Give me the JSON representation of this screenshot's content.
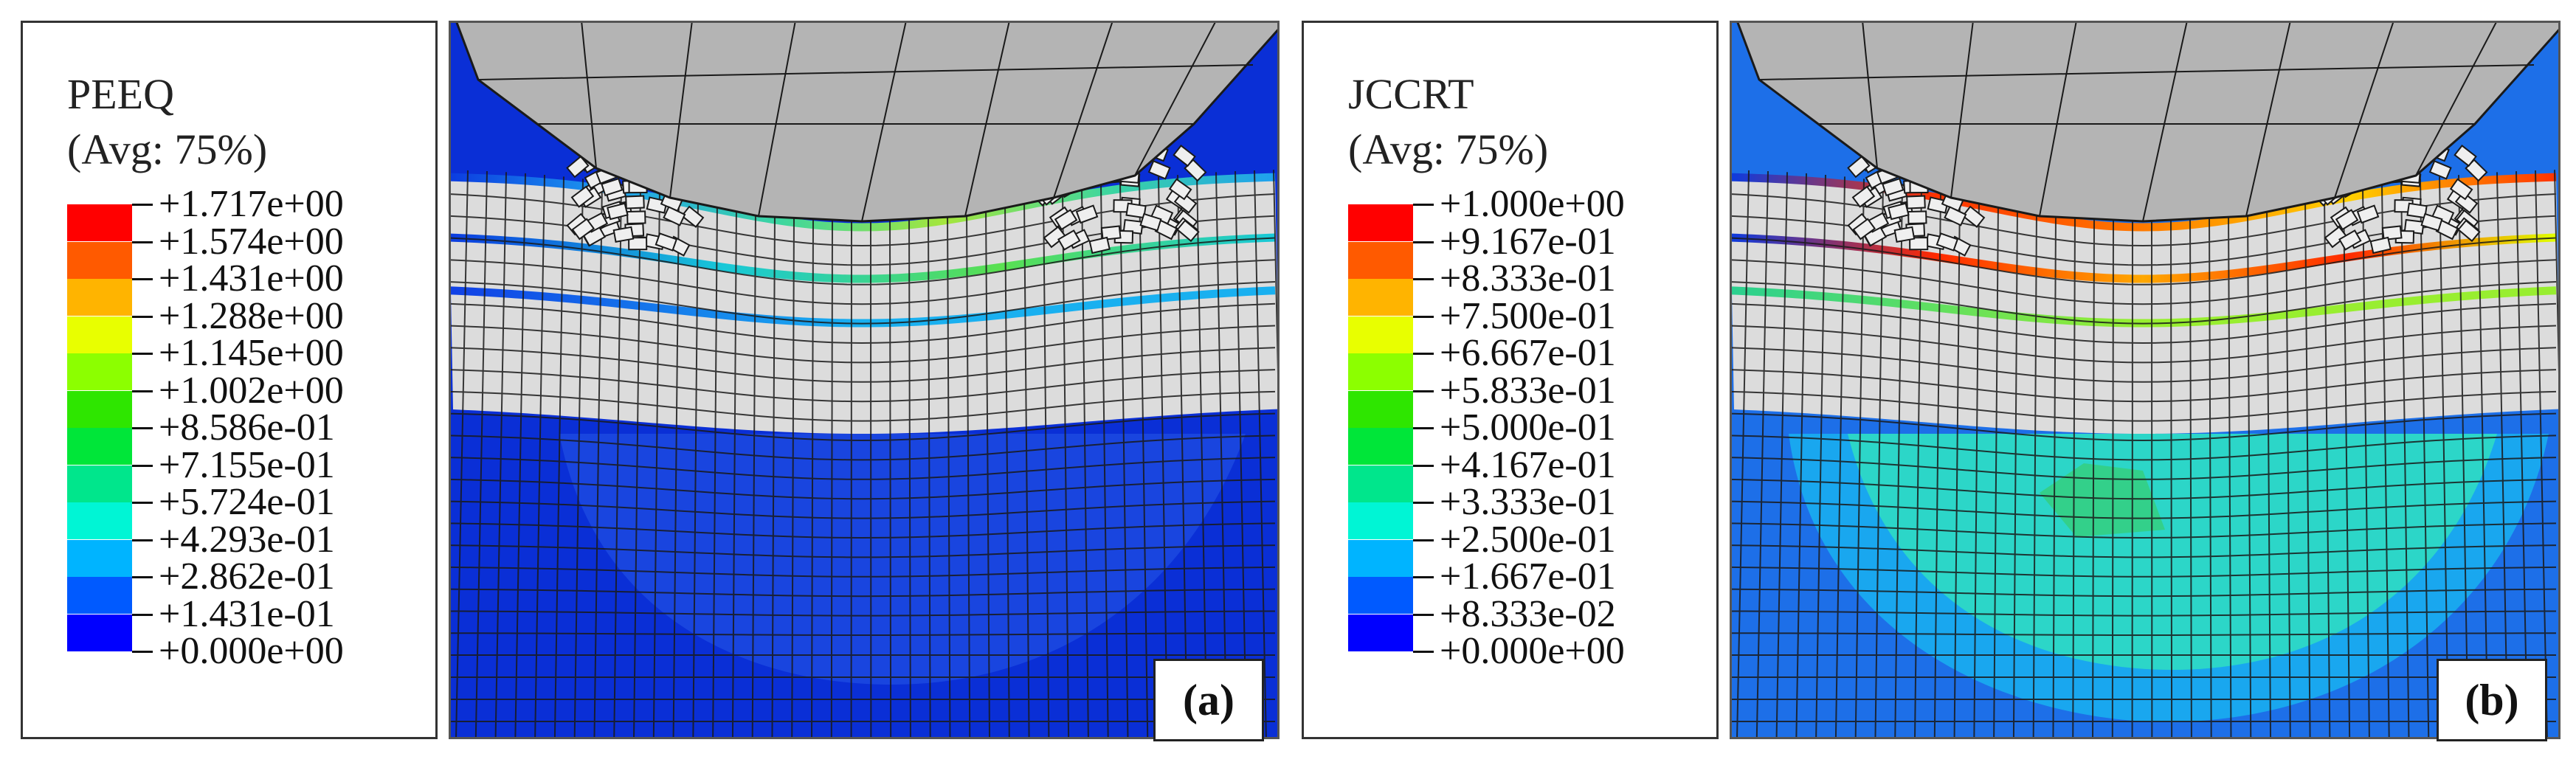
{
  "panels": [
    {
      "id": "a",
      "variable": "PEEQ",
      "averaging": "(Avg: 75%)",
      "panel_label": "(a)",
      "ticks": [
        "+1.717e+00",
        "+1.574e+00",
        "+1.431e+00",
        "+1.288e+00",
        "+1.145e+00",
        "+1.002e+00",
        "+8.586e-01",
        "+7.155e-01",
        "+5.724e-01",
        "+4.293e-01",
        "+2.862e-01",
        "+1.431e-01",
        "+0.000e+00"
      ]
    },
    {
      "id": "b",
      "variable": "JCCRT",
      "averaging": "(Avg: 75%)",
      "panel_label": "(b)",
      "ticks": [
        "+1.000e+00",
        "+9.167e-01",
        "+8.333e-01",
        "+7.500e-01",
        "+6.667e-01",
        "+5.833e-01",
        "+5.000e-01",
        "+4.167e-01",
        "+3.333e-01",
        "+2.500e-01",
        "+1.667e-01",
        "+8.333e-02",
        "+0.000e+00"
      ]
    }
  ],
  "colors": {
    "scale_top_to_bottom": [
      "#ff0000",
      "#ff5a00",
      "#ffb400",
      "#e8ff00",
      "#8cff00",
      "#2ee600",
      "#00e639",
      "#00e68c",
      "#00f5d5",
      "#00b4ff",
      "#005aff",
      "#0000ff"
    ],
    "element_gray": "#dcdcdc",
    "mesh_line": "#1a1a1a",
    "tool_gray": "#b4b4b4"
  }
}
